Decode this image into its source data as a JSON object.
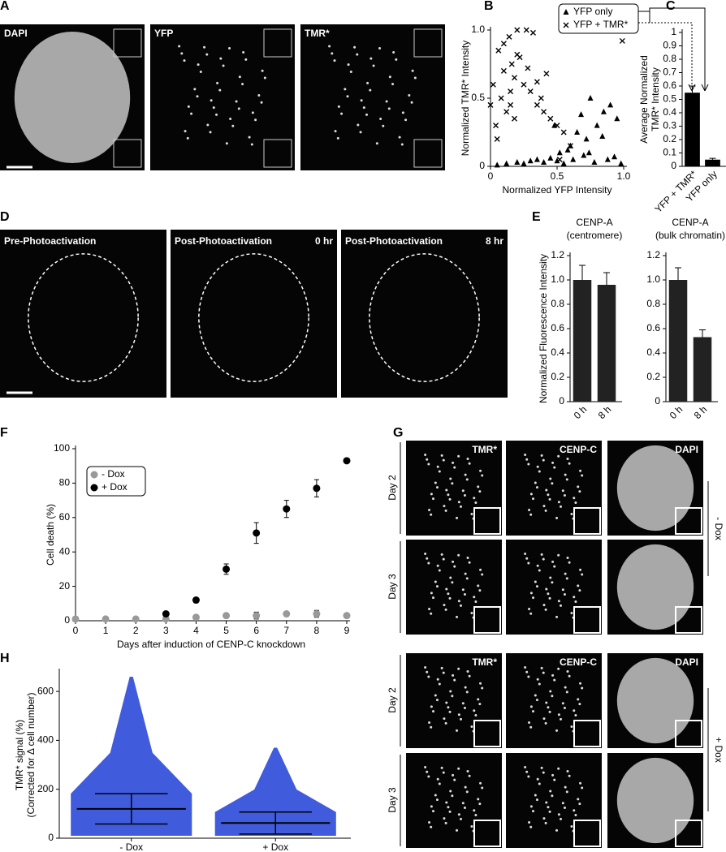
{
  "panels": {
    "labels": [
      "A",
      "B",
      "C",
      "D",
      "E",
      "F",
      "G",
      "H"
    ]
  },
  "panel_A": {
    "images": [
      "DAPI",
      "YFP",
      "TMR*"
    ]
  },
  "panel_D": {
    "images": [
      {
        "label": "Pre-Photoactivation"
      },
      {
        "label": "Post-Photoactivation",
        "time": "0 hr"
      },
      {
        "label": "Post-Photoactivation",
        "time": "8 hr"
      }
    ]
  },
  "panel_G": {
    "columns": [
      "TMR*",
      "CENP-C",
      "DAPI"
    ],
    "rows": [
      "Day 2",
      "Day 3",
      "Day 2",
      "Day 3"
    ],
    "groups": [
      "- Dox",
      "+ Dox"
    ]
  },
  "chart_data": [
    {
      "type": "scatter",
      "xlabel": "Normalized YFP Intensity",
      "ylabel": [
        "Normalized TMR* Intensity"
      ],
      "legend": "top-right",
      "xlim": [
        0,
        1
      ],
      "ylim": [
        0,
        1
      ],
      "xticks": [
        0,
        0.5,
        {
          "value": 1,
          "label": "1.0"
        }
      ],
      "yticks": [
        0,
        0.5,
        {
          "value": 1,
          "label": "1.0"
        }
      ],
      "series": [
        {
          "name": "YFP only",
          "marker": "triangle",
          "color": "#000000",
          "x": [
            0.05,
            0.12,
            0.2,
            0.25,
            0.3,
            0.35,
            0.4,
            0.45,
            0.5,
            0.52,
            0.55,
            0.6,
            0.62,
            0.65,
            0.7,
            0.72,
            0.75,
            0.78,
            0.8,
            0.85,
            0.88,
            0.9,
            0.95,
            0.98,
            0.48,
            0.58,
            0.68,
            0.74,
            0.84,
            0.93
          ],
          "values": [
            0.01,
            0.02,
            0.03,
            0.02,
            0.04,
            0.05,
            0.03,
            0.06,
            0.04,
            0.1,
            0.02,
            0.15,
            0.05,
            0.25,
            0.08,
            0.2,
            0.5,
            0.03,
            0.3,
            0.4,
            0.05,
            0.45,
            0.35,
            0.02,
            0.3,
            0.12,
            0.38,
            0.1,
            0.22,
            0.07
          ]
        },
        {
          "name": "YFP + TMR*",
          "marker": "cross",
          "color": "#000000",
          "x": [
            0.0,
            0.02,
            0.04,
            0.06,
            0.08,
            0.1,
            0.12,
            0.14,
            0.15,
            0.16,
            0.18,
            0.2,
            0.22,
            0.25,
            0.28,
            0.3,
            0.32,
            0.35,
            0.38,
            0.4,
            0.42,
            0.45,
            0.5,
            0.55,
            0.6,
            0.05,
            0.1,
            0.18,
            0.27,
            0.35,
            0.15,
            0.2,
            0.52,
            0.99
          ],
          "values": [
            0.45,
            0.6,
            0.3,
            0.85,
            0.5,
            0.7,
            0.4,
            0.95,
            0.55,
            0.75,
            0.65,
            1.0,
            0.8,
            0.6,
            0.72,
            0.55,
            0.98,
            0.45,
            0.5,
            0.4,
            0.68,
            0.35,
            0.3,
            0.25,
            0.15,
            0.2,
            0.9,
            0.35,
            1.0,
            0.62,
            0.45,
            0.82,
            0.05,
            0.92
          ]
        }
      ]
    },
    {
      "type": "bar",
      "ylabel": [
        "Average Normalized",
        "TMR* Intensity"
      ],
      "categories": [
        "YFP + TMR*",
        "YFP only"
      ],
      "values": [
        0.55,
        0.05
      ],
      "errors": [
        0.05,
        0.01
      ],
      "color": "#000000",
      "ylim": [
        0,
        1
      ],
      "yticks": [
        0,
        0.1,
        0.2,
        0.3,
        0.4,
        0.5,
        0.6,
        0.7,
        0.8,
        0.9,
        1
      ]
    },
    {
      "type": "bar",
      "title": [
        "CENP-A",
        "(centromere)"
      ],
      "ylabel": [
        "Normalized Fluorescence Intensity"
      ],
      "categories": [
        "0 h",
        "8 h"
      ],
      "values": [
        1.0,
        0.96
      ],
      "errors": [
        0.12,
        0.1
      ],
      "color": "#222222",
      "ylim": [
        0,
        1.2
      ],
      "yticks": [
        0,
        0.2,
        0.4,
        0.6,
        0.8,
        {
          "value": 1,
          "label": "1.0"
        },
        1.2
      ]
    },
    {
      "type": "bar",
      "title": [
        "CENP-A",
        "(bulk chromatin)"
      ],
      "categories": [
        "0 h",
        "8 h"
      ],
      "values": [
        1.0,
        0.53
      ],
      "errors": [
        0.1,
        0.06
      ],
      "color": "#222222",
      "ylim": [
        0,
        1.2
      ],
      "yticks": [
        0,
        0.2,
        0.4,
        0.6,
        0.8,
        {
          "value": 1,
          "label": "1.0"
        },
        1.2
      ]
    },
    {
      "type": "scatter",
      "xlabel": "Days after induction of CENP-C knockdown",
      "ylabel": [
        "Cell death (%)"
      ],
      "legend": "upper-left",
      "xlim": [
        0,
        9
      ],
      "ylim": [
        0,
        100
      ],
      "xticks": [
        0,
        1,
        2,
        3,
        4,
        5,
        6,
        7,
        8,
        9
      ],
      "yticks": [
        0,
        20,
        40,
        60,
        80,
        100
      ],
      "series": [
        {
          "name": "- Dox",
          "marker": "circle",
          "color": "#999999",
          "x": [
            0,
            1,
            2,
            3,
            4,
            5,
            6,
            7,
            8,
            9
          ],
          "values": [
            1,
            1,
            1,
            1,
            2,
            3,
            3,
            4,
            4,
            3
          ],
          "errors": [
            0.5,
            0.5,
            0.5,
            1,
            1,
            1,
            2,
            1,
            2,
            1
          ]
        },
        {
          "name": "+ Dox",
          "marker": "circle",
          "color": "#000000",
          "x": [
            3,
            4,
            5,
            6,
            7,
            8,
            9
          ],
          "values": [
            4,
            12,
            30,
            51,
            65,
            77,
            93
          ],
          "errors": [
            1,
            1.5,
            3,
            6,
            5,
            5,
            1
          ]
        }
      ]
    },
    {
      "type": "dotplot",
      "ylabel": [
        "TMR* signal (%)",
        "(Corrected for Δ cell number)"
      ],
      "categories": [
        "- Dox",
        "+ Dox"
      ],
      "mean": [
        120,
        62
      ],
      "sd": [
        62,
        45
      ],
      "max": [
        660,
        370
      ],
      "color": "#1f3fd6",
      "ylim": [
        0,
        680
      ],
      "yticks": [
        0,
        200,
        400,
        600
      ]
    }
  ]
}
